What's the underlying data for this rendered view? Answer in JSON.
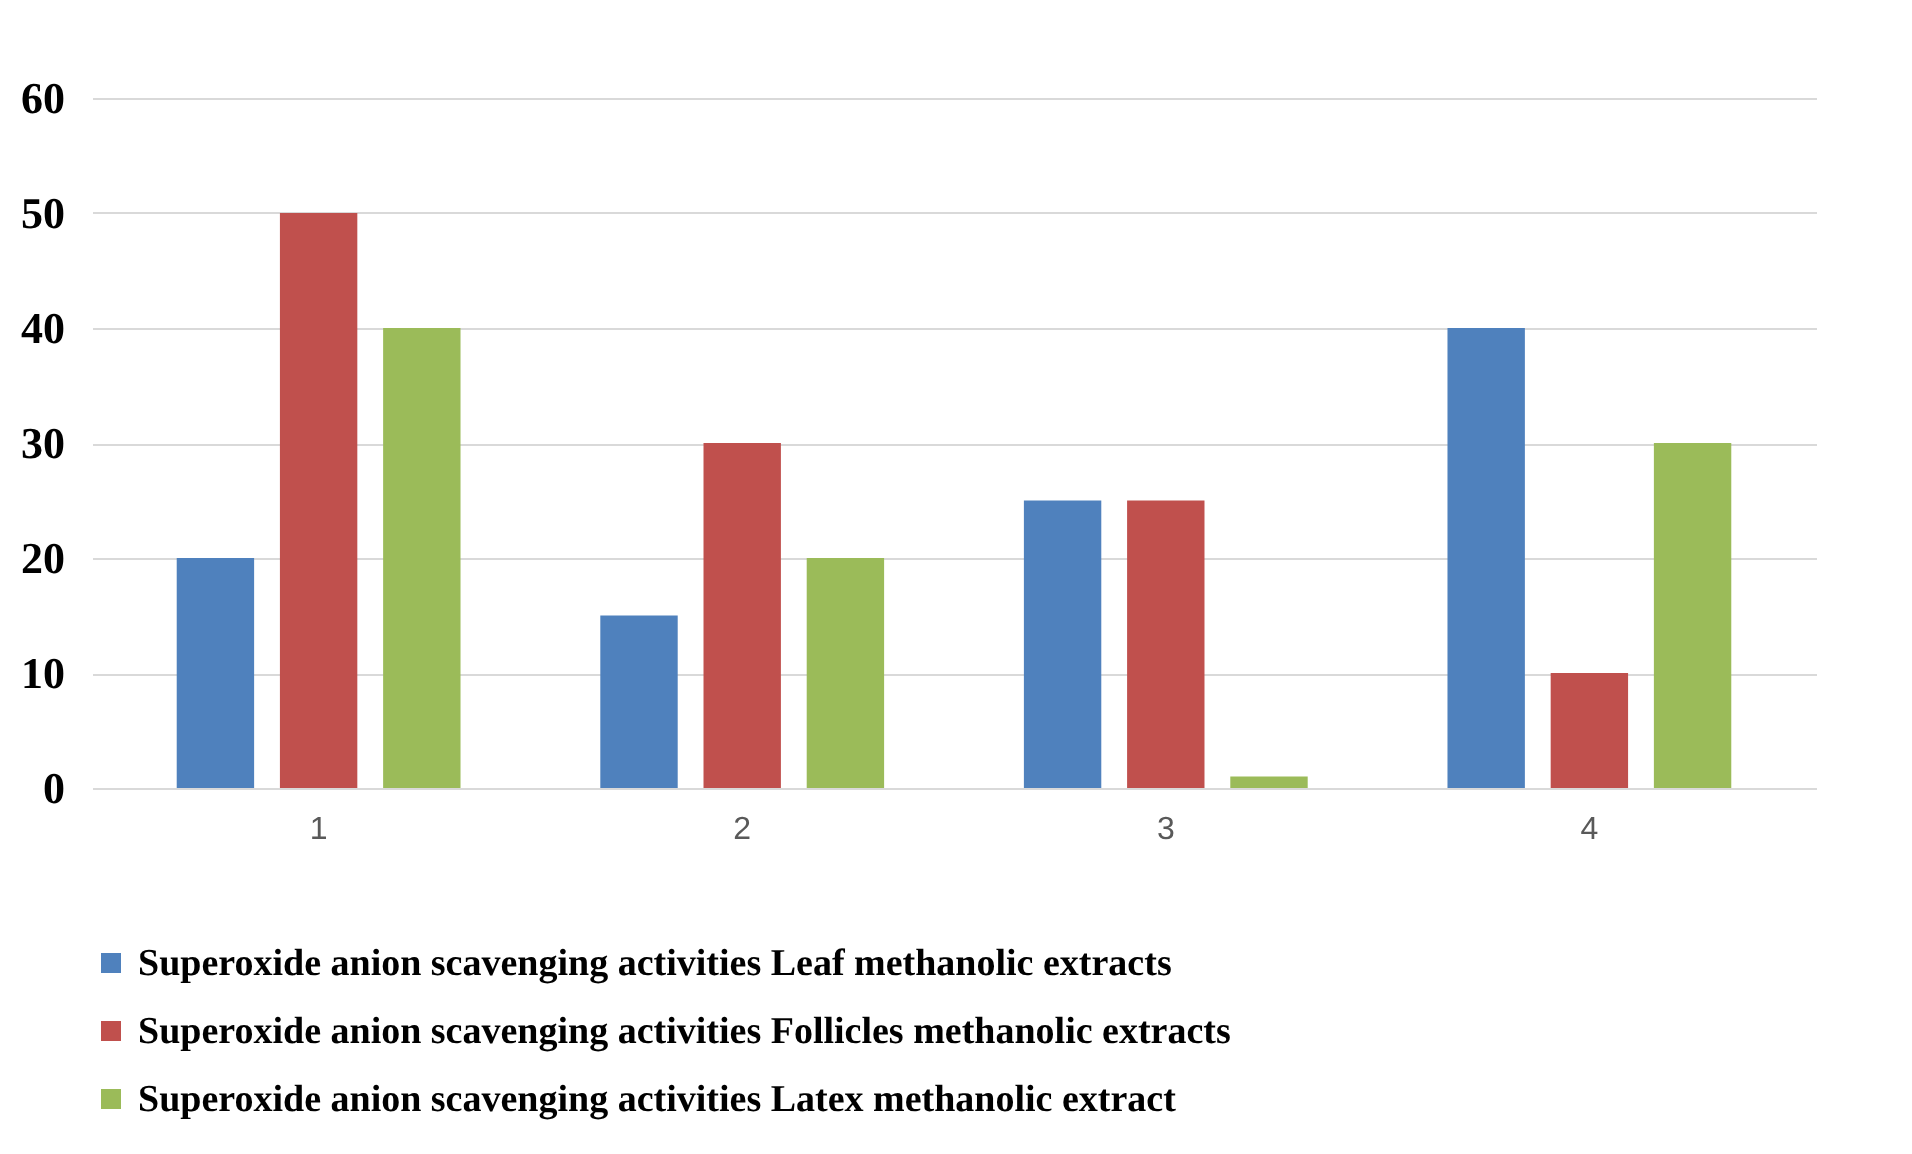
{
  "chart_data": {
    "type": "bar",
    "categories": [
      "1",
      "2",
      "3",
      "4"
    ],
    "series": [
      {
        "name": "Superoxide anion scavenging activities Leaf methanolic extracts",
        "color": "#4f81bd",
        "values": [
          20,
          15,
          25,
          40
        ]
      },
      {
        "name": "Superoxide anion scavenging activities Follicles methanolic extracts",
        "color": "#c0504d",
        "values": [
          50,
          30,
          25,
          10
        ]
      },
      {
        "name": "Superoxide anion scavenging activities Latex methanolic extract",
        "color": "#9bbb59",
        "values": [
          40,
          20,
          1,
          30
        ]
      }
    ],
    "ylim": [
      0,
      60
    ],
    "yticks": [
      0,
      10,
      20,
      30,
      40,
      50,
      60
    ],
    "grid": "y",
    "legend": "bottom"
  }
}
